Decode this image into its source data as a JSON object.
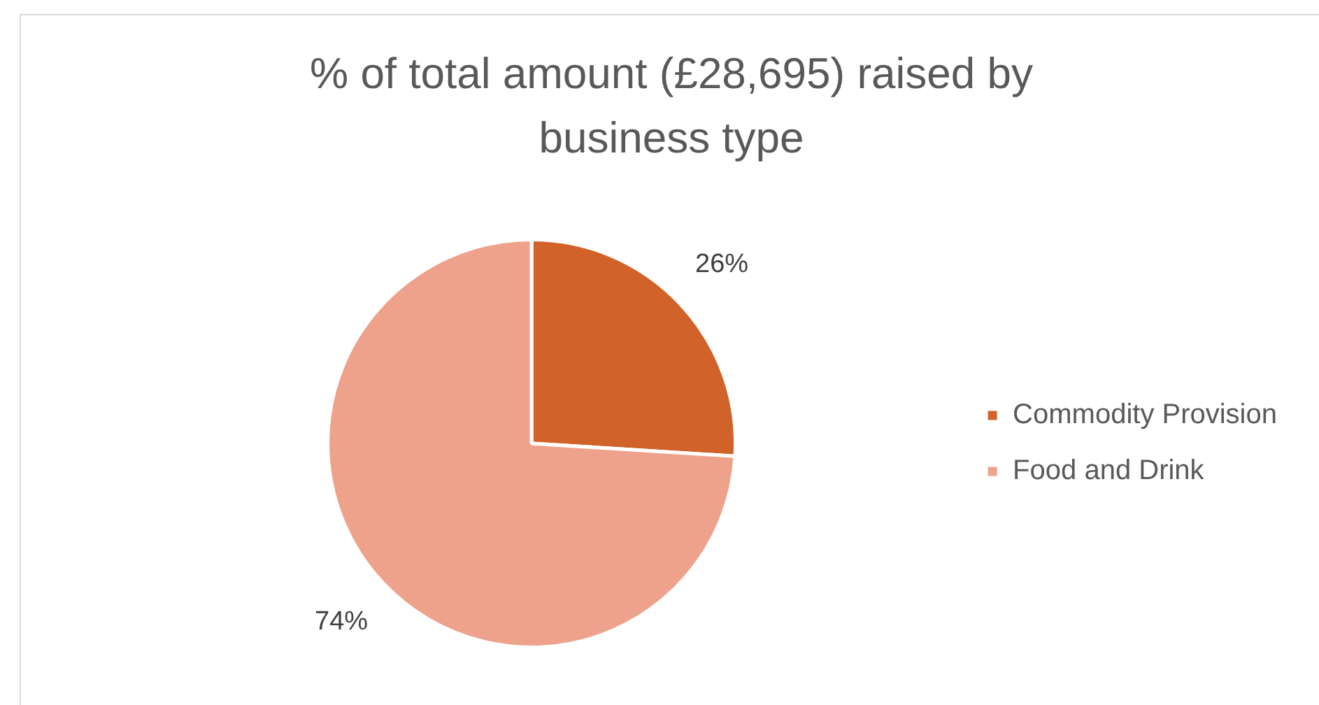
{
  "chart_data": {
    "type": "pie",
    "title": "% of total amount (£28,695) raised by business type",
    "categories": [
      "Commodity Provision",
      "Food and Drink"
    ],
    "values": [
      26,
      74
    ],
    "colors": [
      "#d0622a",
      "#eea28b"
    ],
    "value_labels": [
      "26%",
      "74%"
    ],
    "legend": "right"
  }
}
